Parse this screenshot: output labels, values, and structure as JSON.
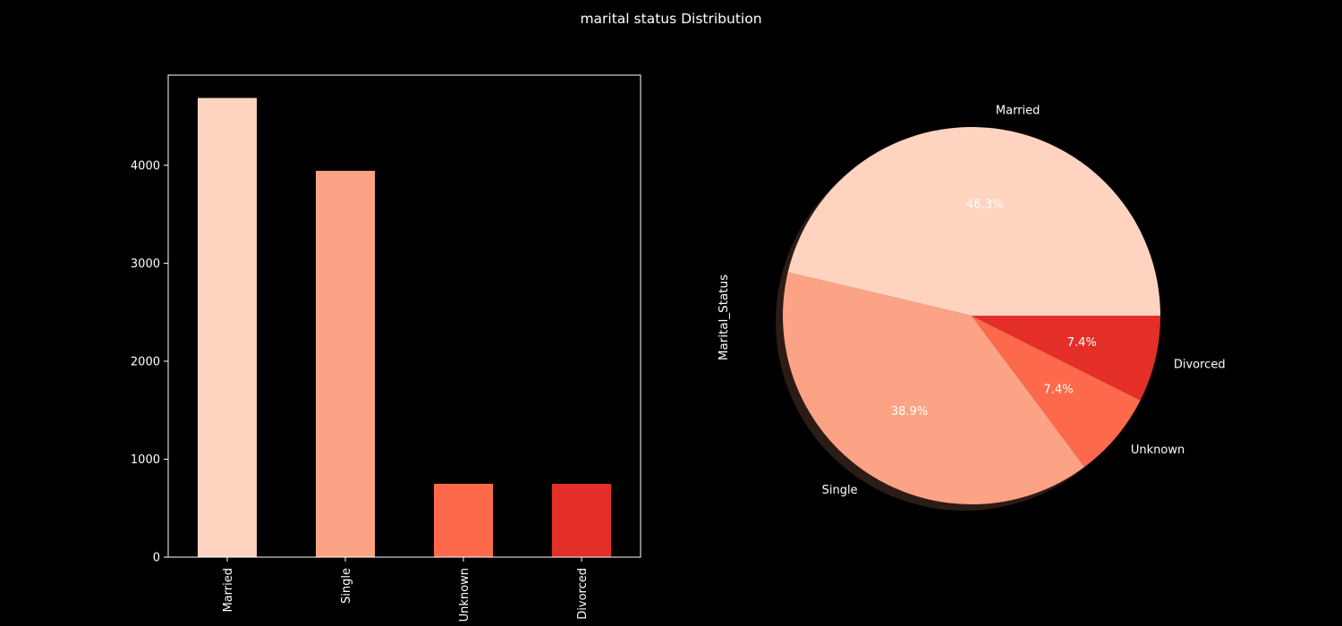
{
  "figure": {
    "suptitle": "marital status Distribution",
    "background": "#000000",
    "foreground": "#ffffff"
  },
  "chart_data": [
    {
      "type": "bar",
      "categories": [
        "Married",
        "Single",
        "Unknown",
        "Divorced"
      ],
      "values": [
        4687,
        3943,
        749,
        748
      ],
      "colors": [
        "#fed3c0",
        "#fca385",
        "#fc6a4b",
        "#e32f27"
      ],
      "ylim": [
        0,
        4920
      ],
      "yticks": [
        0,
        1000,
        2000,
        3000,
        4000
      ],
      "xlabel": "",
      "ylabel": "",
      "xtick_rotation": "vertical",
      "grid": false
    },
    {
      "type": "pie",
      "labels": [
        "Married",
        "Single",
        "Unknown",
        "Divorced"
      ],
      "percentages": [
        "46.3%",
        "38.9%",
        "7.4%",
        "7.4%"
      ],
      "values": [
        46.3,
        38.9,
        7.4,
        7.4
      ],
      "colors": [
        "#fed3c0",
        "#fca385",
        "#fc6a4b",
        "#e32f27"
      ],
      "ylabel": "Marital_Status",
      "shadow": true,
      "start": "3 o'clock, counter-clockwise"
    }
  ]
}
